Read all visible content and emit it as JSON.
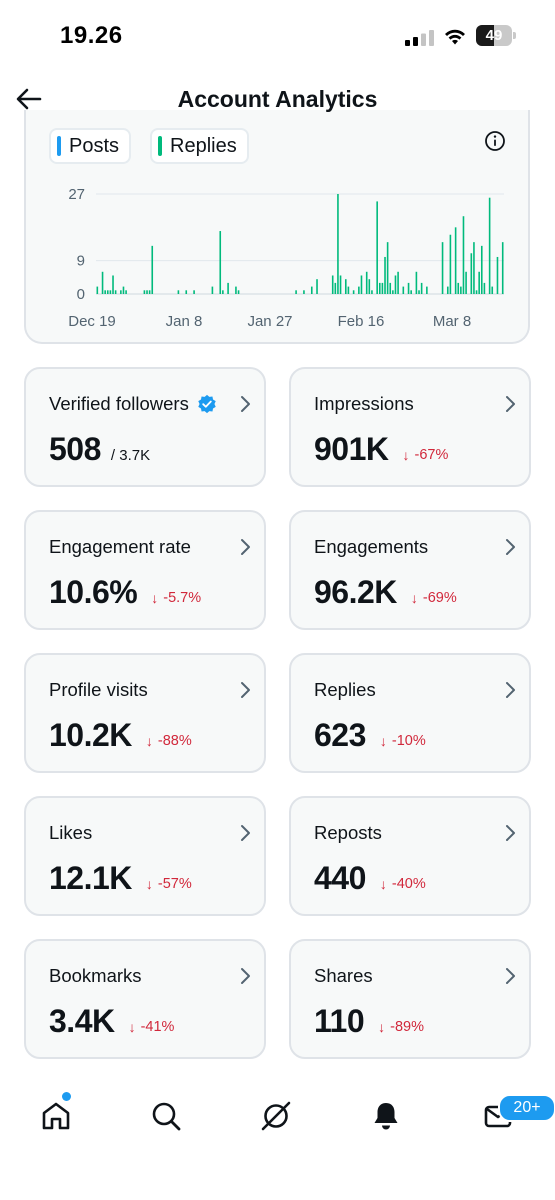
{
  "status_bar": {
    "time": "19.26",
    "battery": "49",
    "battery_level_percent": 49
  },
  "header": {
    "title": "Account Analytics",
    "back_icon": "arrow-left-icon"
  },
  "chart": {
    "legend": [
      {
        "label": "Posts",
        "color": "#1d9bf0"
      },
      {
        "label": "Replies",
        "color": "#00ba7c"
      }
    ],
    "info_icon": "info-icon"
  },
  "chart_data": {
    "type": "bar",
    "x_tick_labels": [
      "Dec 19",
      "Jan 8",
      "Jan 27",
      "Feb 16",
      "Mar 8"
    ],
    "y_tick_labels": [
      "27",
      "9",
      "0"
    ],
    "ylim": [
      0,
      27
    ],
    "grid": true,
    "bar_color": "#00ba7c",
    "series": [
      {
        "values": [
          2,
          0,
          6,
          1,
          1,
          1,
          5,
          1,
          0,
          1,
          2,
          1,
          0,
          0,
          0,
          0,
          0,
          0,
          1,
          1,
          1,
          13,
          0,
          0,
          0,
          0,
          0,
          0,
          0,
          0,
          0,
          1,
          0,
          0,
          1,
          0,
          0,
          1,
          0,
          0,
          0,
          0,
          0,
          0,
          2,
          0,
          0,
          17,
          1,
          0,
          3,
          0,
          0,
          2,
          1,
          0,
          0,
          0,
          0,
          0,
          0,
          0,
          0,
          0,
          0,
          0,
          0,
          0,
          0,
          0,
          0,
          0,
          0,
          0,
          0,
          0,
          1,
          0,
          0,
          1,
          0,
          0,
          2,
          0,
          4,
          0,
          0,
          0,
          0,
          0,
          5,
          3,
          27,
          5,
          0,
          4,
          2,
          0,
          1,
          0,
          2,
          5,
          0,
          6,
          4,
          1,
          0,
          25,
          3,
          3,
          10,
          14,
          3,
          1,
          5,
          6,
          0,
          2,
          0,
          3,
          1,
          0,
          6,
          1,
          3,
          0,
          2,
          0,
          0,
          0,
          0,
          0,
          14,
          0,
          2,
          16,
          0,
          18,
          3,
          2,
          21,
          6,
          0,
          11,
          14,
          1,
          6,
          13,
          3,
          0,
          26,
          2,
          0,
          10,
          0,
          14
        ]
      }
    ]
  },
  "metrics": [
    {
      "label": "Verified followers",
      "value": "508",
      "sub": "/ 3.7K",
      "verified": true
    },
    {
      "label": "Impressions",
      "value": "901K",
      "change": "-67%"
    },
    {
      "label": "Engagement rate",
      "value": "10.6%",
      "change": "-5.7%"
    },
    {
      "label": "Engagements",
      "value": "96.2K",
      "change": "-69%"
    },
    {
      "label": "Profile visits",
      "value": "10.2K",
      "change": "-88%"
    },
    {
      "label": "Replies",
      "value": "623",
      "change": "-10%"
    },
    {
      "label": "Likes",
      "value": "12.1K",
      "change": "-57%"
    },
    {
      "label": "Reposts",
      "value": "440",
      "change": "-40%"
    },
    {
      "label": "Bookmarks",
      "value": "3.4K",
      "change": "-41%"
    },
    {
      "label": "Shares",
      "value": "110",
      "change": "-89%"
    }
  ],
  "colors": {
    "accent": "#1d9bf0",
    "negative": "#d1283b",
    "replies_green": "#00ba7c"
  },
  "bottom_nav": {
    "items": [
      "home-icon",
      "search-icon",
      "grok-icon",
      "notifications-icon",
      "messages-icon"
    ],
    "messages_badge": "20+"
  }
}
